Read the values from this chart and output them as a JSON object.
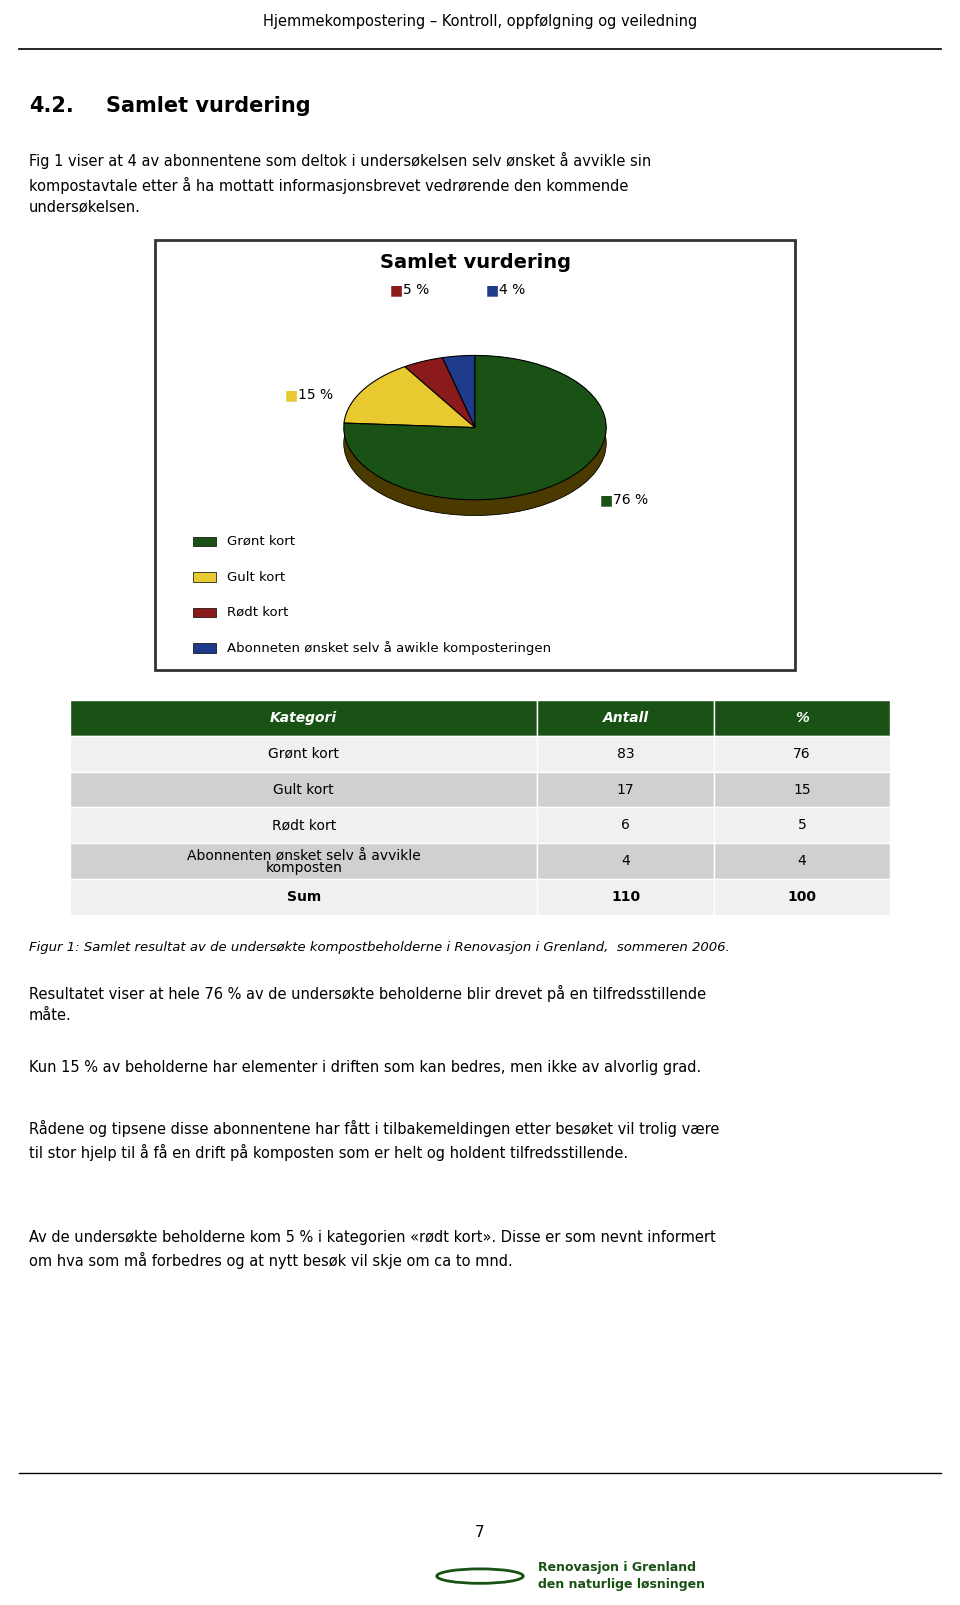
{
  "header_text": "Hjemmekompostering – Kontroll, oppfølgning og veiledning",
  "section_title": "4.2.",
  "section_title2": "Samlet vurdering",
  "body_text1": "Fig 1 viser at 4 av abonnentene som deltok i undersøkelsen selv ønsket å avvikle sin\nkompostavtale etter å ha mottatt informasjonsbrevet vedrørende den kommende\nundersøkelsen.",
  "chart_title": "Samlet vurdering",
  "pie_values": [
    76,
    15,
    5,
    4
  ],
  "pie_colors": [
    "#1a5216",
    "#e8c930",
    "#8b1a1a",
    "#1e3a8a"
  ],
  "pie_colors_dark": [
    "#0d2a0b",
    "#8b6e1a",
    "#4a0e0e",
    "#0e1f4a"
  ],
  "pie_labels": [
    "76 %",
    "15 %",
    "5 %",
    "4 %"
  ],
  "legend_labels": [
    "Grønt kort",
    "Gult kort",
    "Rødt kort",
    "Abonneten ønsket selv å awikle komposteringen"
  ],
  "table_header": [
    "Kategori",
    "Antall",
    "%"
  ],
  "table_rows": [
    [
      "Grønt kort",
      "83",
      "76"
    ],
    [
      "Gult kort",
      "17",
      "15"
    ],
    [
      "Rødt kort",
      "6",
      "5"
    ],
    [
      "Abonnenten ønsket selv å avvikle\nkomposten",
      "4",
      "4"
    ],
    [
      "Sum",
      "110",
      "100"
    ]
  ],
  "table_header_bg": "#1a5216",
  "table_header_fg": "#ffffff",
  "table_row_bg1": "#f0f0f0",
  "table_row_bg2": "#d0d0d0",
  "figure_caption": "Figur 1: Samlet resultat av de undersøkte kompostbeholderne i Renovasjon i Grenland,  sommeren 2006.",
  "body_text2": "Resultatet viser at hele 76 % av de undersøkte beholderne blir drevet på en tilfredsstillende\nmåte.",
  "body_text3": "Kun 15 % av beholderne har elementer i driften som kan bedres, men ikke av alvorlig grad.",
  "body_text4": "Rådene og tipsene disse abonnentene har fått i tilbakemeldingen etter besøket vil trolig være\ntil stor hjelp til å få en drift på komposten som er helt og holdent tilfredsstillende.",
  "body_text5": "Av de undersøkte beholderne kom 5 % i kategorien «rødt kort». Disse er som nevnt informert\nom hva som må forbedres og at nytt besøk vil skje om ca to mnd.",
  "page_number": "7",
  "bg_color": "#ffffff"
}
